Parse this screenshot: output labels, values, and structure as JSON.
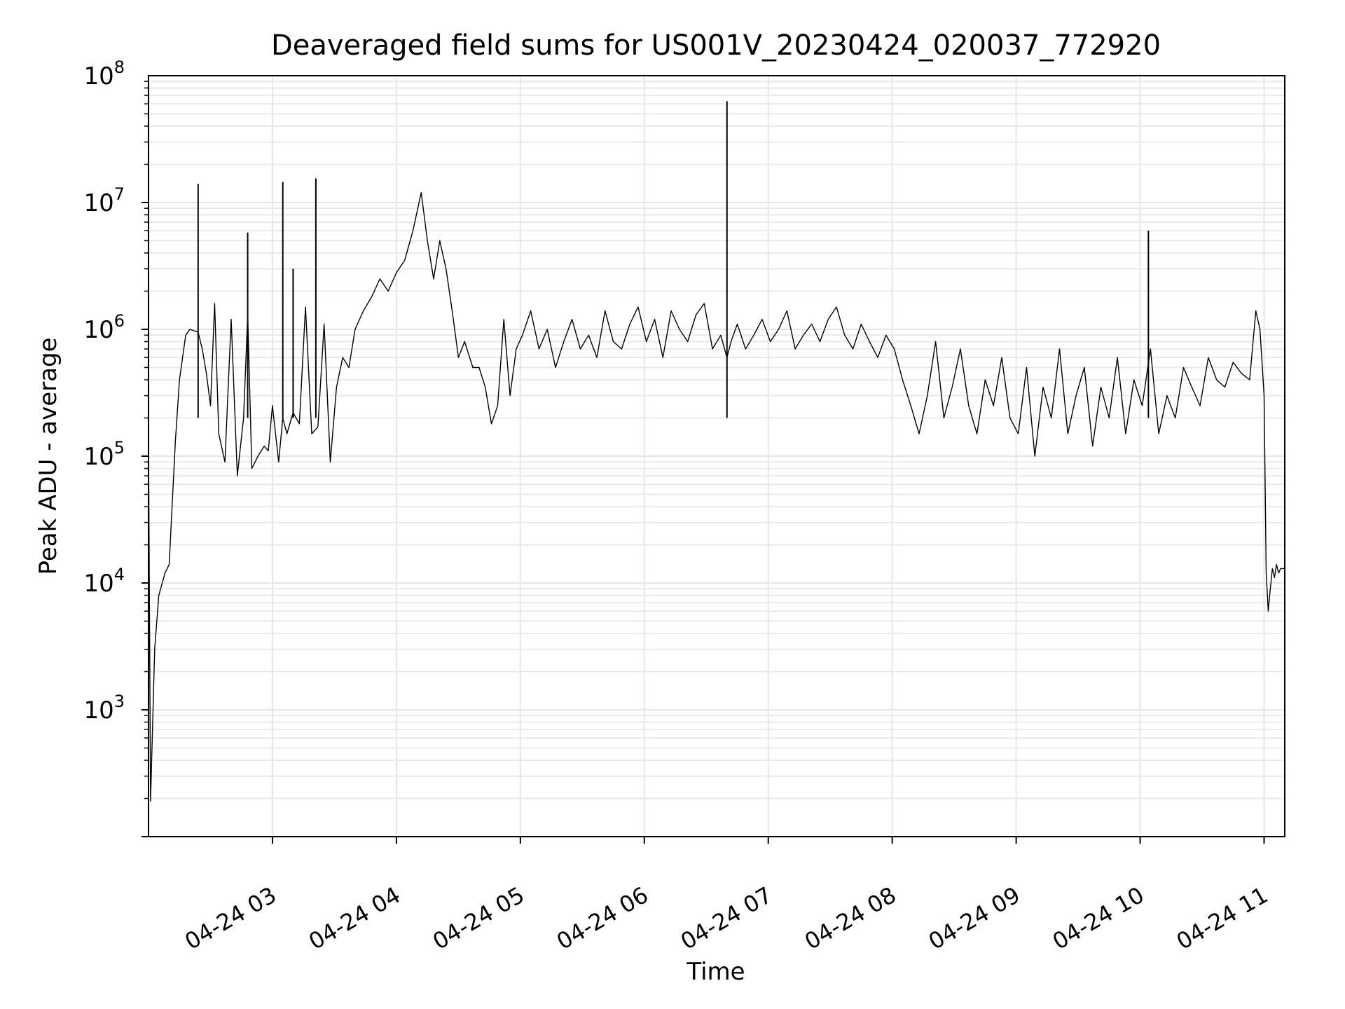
{
  "chart_data": {
    "type": "line",
    "title": "Deaveraged field sums for US001V_20230424_020037_772920",
    "xlabel": "Time",
    "ylabel": "Peak ADU - average",
    "x_scale": "time",
    "y_scale": "log",
    "xlim": [
      "2023-04-24 02:00",
      "2023-04-24 11:10"
    ],
    "ylim": [
      100,
      100000000
    ],
    "grid": true,
    "legend": "none",
    "line_color": "#000000",
    "grid_color": "#e6e6e6",
    "x_ticks": [
      {
        "t": "2023-04-24 03:00",
        "label": "04-24 03"
      },
      {
        "t": "2023-04-24 04:00",
        "label": "04-24 04"
      },
      {
        "t": "2023-04-24 05:00",
        "label": "04-24 05"
      },
      {
        "t": "2023-04-24 06:00",
        "label": "04-24 06"
      },
      {
        "t": "2023-04-24 07:00",
        "label": "04-24 07"
      },
      {
        "t": "2023-04-24 08:00",
        "label": "04-24 08"
      },
      {
        "t": "2023-04-24 09:00",
        "label": "04-24 09"
      },
      {
        "t": "2023-04-24 10:00",
        "label": "04-24 10"
      },
      {
        "t": "2023-04-24 11:00",
        "label": "04-24 11"
      }
    ],
    "y_ticks": [
      {
        "value": 1000,
        "base": "10",
        "exp": "3"
      },
      {
        "value": 10000,
        "base": "10",
        "exp": "4"
      },
      {
        "value": 100000,
        "base": "10",
        "exp": "5"
      },
      {
        "value": 1000000,
        "base": "10",
        "exp": "6"
      },
      {
        "value": 10000000,
        "base": "10",
        "exp": "7"
      },
      {
        "value": 100000000,
        "base": "10",
        "exp": "8"
      }
    ],
    "series": [
      {
        "x": [
          "2023-04-24 02:00",
          "2023-04-24 02:01",
          "2023-04-24 02:03",
          "2023-04-24 02:05",
          "2023-04-24 02:08",
          "2023-04-24 02:10",
          "2023-04-24 02:13",
          "2023-04-24 02:15",
          "2023-04-24 02:18",
          "2023-04-24 02:20",
          "2023-04-24 02:24",
          "2023-04-24 02:26",
          "2023-04-24 02:28",
          "2023-04-24 02:30",
          "2023-04-24 02:32",
          "2023-04-24 02:34",
          "2023-04-24 02:37",
          "2023-04-24 02:40",
          "2023-04-24 02:43",
          "2023-04-24 02:46",
          "2023-04-24 02:48",
          "2023-04-24 02:50",
          "2023-04-24 02:53",
          "2023-04-24 02:56",
          "2023-04-24 02:58",
          "2023-04-24 03:00",
          "2023-04-24 03:03",
          "2023-04-24 03:05",
          "2023-04-24 03:07",
          "2023-04-24 03:10",
          "2023-04-24 03:13",
          "2023-04-24 03:16",
          "2023-04-24 03:19",
          "2023-04-24 03:22",
          "2023-04-24 03:25",
          "2023-04-24 03:28",
          "2023-04-24 03:31",
          "2023-04-24 03:34",
          "2023-04-24 03:37",
          "2023-04-24 03:40",
          "2023-04-24 03:44",
          "2023-04-24 03:48",
          "2023-04-24 03:52",
          "2023-04-24 03:56",
          "2023-04-24 04:00",
          "2023-04-24 04:04",
          "2023-04-24 04:08",
          "2023-04-24 04:12",
          "2023-04-24 04:15",
          "2023-04-24 04:18",
          "2023-04-24 04:21",
          "2023-04-24 04:24",
          "2023-04-24 04:27",
          "2023-04-24 04:30",
          "2023-04-24 04:33",
          "2023-04-24 04:37",
          "2023-04-24 04:40",
          "2023-04-24 04:43",
          "2023-04-24 04:46",
          "2023-04-24 04:49",
          "2023-04-24 04:52",
          "2023-04-24 04:55",
          "2023-04-24 04:58",
          "2023-04-24 05:01",
          "2023-04-24 05:05",
          "2023-04-24 05:09",
          "2023-04-24 05:13",
          "2023-04-24 05:17",
          "2023-04-24 05:21",
          "2023-04-24 05:25",
          "2023-04-24 05:29",
          "2023-04-24 05:33",
          "2023-04-24 05:37",
          "2023-04-24 05:41",
          "2023-04-24 05:45",
          "2023-04-24 05:49",
          "2023-04-24 05:53",
          "2023-04-24 05:57",
          "2023-04-24 06:01",
          "2023-04-24 06:05",
          "2023-04-24 06:09",
          "2023-04-24 06:13",
          "2023-04-24 06:17",
          "2023-04-24 06:21",
          "2023-04-24 06:25",
          "2023-04-24 06:29",
          "2023-04-24 06:33",
          "2023-04-24 06:37",
          "2023-04-24 06:40",
          "2023-04-24 06:42",
          "2023-04-24 06:45",
          "2023-04-24 06:49",
          "2023-04-24 06:53",
          "2023-04-24 06:57",
          "2023-04-24 07:01",
          "2023-04-24 07:05",
          "2023-04-24 07:09",
          "2023-04-24 07:13",
          "2023-04-24 07:17",
          "2023-04-24 07:21",
          "2023-04-24 07:25",
          "2023-04-24 07:29",
          "2023-04-24 07:33",
          "2023-04-24 07:37",
          "2023-04-24 07:41",
          "2023-04-24 07:45",
          "2023-04-24 07:49",
          "2023-04-24 07:53",
          "2023-04-24 07:57",
          "2023-04-24 08:01",
          "2023-04-24 08:05",
          "2023-04-24 08:09",
          "2023-04-24 08:13",
          "2023-04-24 08:17",
          "2023-04-24 08:21",
          "2023-04-24 08:25",
          "2023-04-24 08:29",
          "2023-04-24 08:33",
          "2023-04-24 08:37",
          "2023-04-24 08:41",
          "2023-04-24 08:45",
          "2023-04-24 08:49",
          "2023-04-24 08:53",
          "2023-04-24 08:57",
          "2023-04-24 09:01",
          "2023-04-24 09:05",
          "2023-04-24 09:09",
          "2023-04-24 09:13",
          "2023-04-24 09:17",
          "2023-04-24 09:21",
          "2023-04-24 09:25",
          "2023-04-24 09:29",
          "2023-04-24 09:33",
          "2023-04-24 09:37",
          "2023-04-24 09:41",
          "2023-04-24 09:45",
          "2023-04-24 09:49",
          "2023-04-24 09:53",
          "2023-04-24 09:57",
          "2023-04-24 10:01",
          "2023-04-24 10:05",
          "2023-04-24 10:09",
          "2023-04-24 10:13",
          "2023-04-24 10:17",
          "2023-04-24 10:21",
          "2023-04-24 10:25",
          "2023-04-24 10:29",
          "2023-04-24 10:33",
          "2023-04-24 10:37",
          "2023-04-24 10:41",
          "2023-04-24 10:45",
          "2023-04-24 10:49",
          "2023-04-24 10:53",
          "2023-04-24 10:56",
          "2023-04-24 10:58",
          "2023-04-24 11:00",
          "2023-04-24 11:01",
          "2023-04-24 11:02",
          "2023-04-24 11:03",
          "2023-04-24 11:04",
          "2023-04-24 11:05",
          "2023-04-24 11:06",
          "2023-04-24 11:07",
          "2023-04-24 11:08",
          "2023-04-24 11:09",
          "2023-04-24 11:10"
        ],
        "y": [
          150000,
          190,
          3000,
          8000,
          12000,
          14000,
          130000,
          400000,
          900000,
          1000000,
          950000,
          700000,
          450000,
          250000,
          1600000,
          150000,
          90000,
          1200000,
          70000,
          200000,
          1300000,
          80000,
          100000,
          120000,
          110000,
          250000,
          90000,
          200000,
          150000,
          220000,
          180000,
          1500000,
          150000,
          170000,
          1100000,
          90000,
          350000,
          600000,
          500000,
          1000000,
          1400000,
          1800000,
          2500000,
          2000000,
          2800000,
          3500000,
          6000000,
          12000000,
          5000000,
          2500000,
          5000000,
          3000000,
          1400000,
          600000,
          800000,
          500000,
          500000,
          350000,
          180000,
          250000,
          1200000,
          300000,
          700000,
          900000,
          1400000,
          700000,
          1000000,
          500000,
          800000,
          1200000,
          700000,
          900000,
          600000,
          1400000,
          800000,
          700000,
          1100000,
          1500000,
          800000,
          1200000,
          600000,
          1400000,
          1000000,
          800000,
          1300000,
          1600000,
          700000,
          900000,
          600000,
          800000,
          1100000,
          700000,
          900000,
          1200000,
          800000,
          1000000,
          1400000,
          700000,
          900000,
          1100000,
          800000,
          1200000,
          1500000,
          900000,
          700000,
          1100000,
          800000,
          600000,
          900000,
          700000,
          400000,
          250000,
          150000,
          300000,
          800000,
          200000,
          350000,
          700000,
          250000,
          150000,
          400000,
          250000,
          600000,
          200000,
          150000,
          500000,
          100000,
          350000,
          200000,
          700000,
          150000,
          300000,
          500000,
          120000,
          350000,
          200000,
          600000,
          150000,
          400000,
          250000,
          700000,
          150000,
          300000,
          200000,
          500000,
          350000,
          250000,
          600000,
          400000,
          350000,
          550000,
          450000,
          400000,
          1400000,
          1000000,
          300000,
          12000,
          6000,
          9000,
          13000,
          11000,
          14000,
          12000,
          13000,
          13000,
          13000
        ]
      }
    ],
    "spikes": [
      {
        "x": "2023-04-24 02:24",
        "y": 14000000
      },
      {
        "x": "2023-04-24 02:48",
        "y": 5800000
      },
      {
        "x": "2023-04-24 03:05",
        "y": 14500000
      },
      {
        "x": "2023-04-24 03:10",
        "y": 3000000
      },
      {
        "x": "2023-04-24 03:21",
        "y": 15500000
      },
      {
        "x": "2023-04-24 06:40",
        "y": 63000000
      },
      {
        "x": "2023-04-24 10:04",
        "y": 6000000
      }
    ]
  }
}
